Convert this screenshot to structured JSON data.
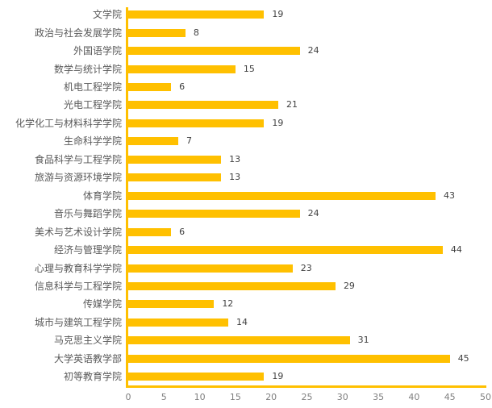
{
  "chart_data": {
    "type": "bar",
    "orientation": "horizontal",
    "title": "",
    "xlabel": "",
    "ylabel": "",
    "categories": [
      "文学院",
      "政治与社会发展学院",
      "外国语学院",
      "数学与统计学院",
      "机电工程学院",
      "光电工程学院",
      "化学化工与材料科学学院",
      "生命科学学院",
      "食品科学与工程学院",
      "旅游与资源环境学院",
      "体育学院",
      "音乐与舞蹈学院",
      "美术与艺术设计学院",
      "经济与管理学院",
      "心理与教育科学学院",
      "信息科学与工程学院",
      "传媒学院",
      "城市与建筑工程学院",
      "马克思主义学院",
      "大学英语教学部",
      "初等教育学院"
    ],
    "values": [
      19,
      8,
      24,
      15,
      6,
      21,
      19,
      7,
      13,
      13,
      43,
      24,
      6,
      44,
      23,
      29,
      12,
      14,
      31,
      45,
      19
    ],
    "xlim": [
      0,
      50
    ],
    "x_ticks": [
      0,
      5,
      10,
      15,
      20,
      25,
      30,
      35,
      40,
      45,
      50
    ],
    "data_labels": true,
    "grid": false,
    "legend": false,
    "colors": {
      "bar": "#FFC000",
      "axis_line": "#FFC000",
      "category_label": "#595959",
      "value_label": "#404040",
      "tick_label": "#7f7f7f"
    }
  }
}
